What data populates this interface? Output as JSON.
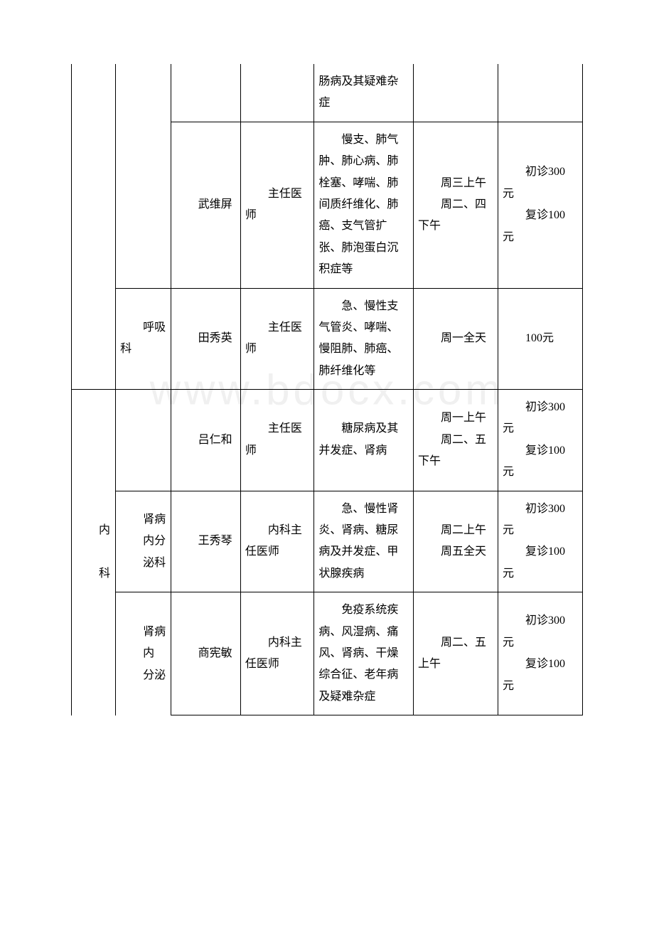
{
  "watermark": "www.bdocx.com",
  "table": {
    "border_color": "#000000",
    "background_color": "#ffffff",
    "font_size": 16,
    "rows": [
      {
        "dept_main": "",
        "dept_sub": "",
        "name": "",
        "title": "",
        "specialty": "肠病及其疑难杂症",
        "schedule": "",
        "fee": ""
      },
      {
        "dept_main": "",
        "dept_sub": "",
        "name": "武维屏",
        "title": "主任医师",
        "specialty": "慢支、肺气肿、肺心病、肺栓塞、哮喘、肺间质纤维化、肺癌、支气管扩张、肺泡蛋白沉积症等",
        "schedule_p1": "周三上午",
        "schedule_p2": "周二、四下午",
        "fee_p1": "初诊300 元",
        "fee_p2": "复诊100 元"
      },
      {
        "dept_main": "",
        "dept_sub": "呼吸科",
        "name": "田秀英",
        "title": "主任医师",
        "specialty": "急、慢性支气管炎、哮喘、慢阻肺、肺癌、肺纤维化等",
        "schedule": "周一全天",
        "fee": "100元"
      },
      {
        "dept_main": "",
        "dept_sub": "",
        "name": "吕仁和",
        "title": "主任医师",
        "specialty": "糖尿病及其并发症、肾病",
        "schedule_p1": "周一上午",
        "schedule_p2": "周二、五下午",
        "fee_p1": "初诊300 元",
        "fee_p2": "复诊100 元"
      },
      {
        "dept_main": "",
        "dept_sub_line1": "肾病",
        "dept_sub_line2": "内分",
        "dept_sub_line3": "泌科",
        "name": "王秀琴",
        "title": "内科主任医师",
        "specialty": "急、慢性肾炎、肾病、糖尿病及并发症、甲状腺疾病",
        "schedule_p1": "周二上午",
        "schedule_p2": "周五全天",
        "fee_p1": "初诊300 元",
        "fee_p2": "复诊100 元"
      },
      {
        "dept_main_line1": "内",
        "dept_main_line2": "科",
        "dept_sub_line1": "肾病",
        "dept_sub_line2": "内",
        "dept_sub_line3": "分泌",
        "name": "商宪敏",
        "title": "内科主任医师",
        "specialty": "免疫系统疾病、风湿病、痛风、肾病、干燥综合征、老年病及疑难杂症",
        "schedule": "周二、五上午",
        "fee_p1": "初诊300 元",
        "fee_p2": "复诊100 元"
      }
    ]
  }
}
